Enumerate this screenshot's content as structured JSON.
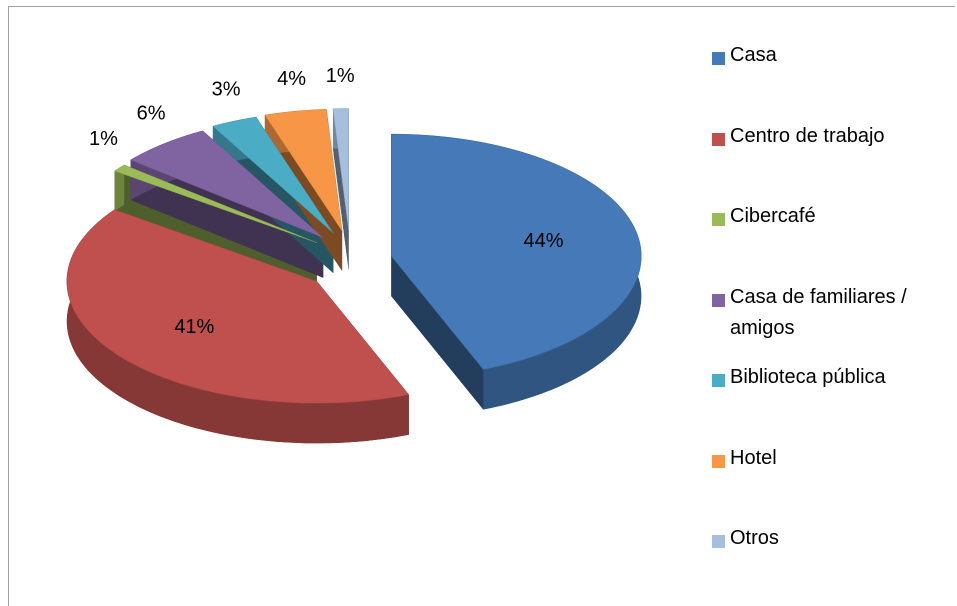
{
  "chart_data": {
    "type": "pie",
    "categories": [
      "Casa",
      "Centro de trabajo",
      "Cibercafé",
      "Casa de familiares / amigos",
      "Biblioteca pública",
      "Hotel",
      "Otros"
    ],
    "values": [
      44,
      41,
      1,
      6,
      3,
      4,
      1
    ],
    "value_labels": [
      "44%",
      "41%",
      "1%",
      "6%",
      "3%",
      "4%",
      "1%"
    ],
    "colors": [
      "#4579b8",
      "#c0504d",
      "#9bbb59",
      "#8064a2",
      "#4bacc6",
      "#f79646",
      "#a7bfde"
    ],
    "legend": "right"
  }
}
